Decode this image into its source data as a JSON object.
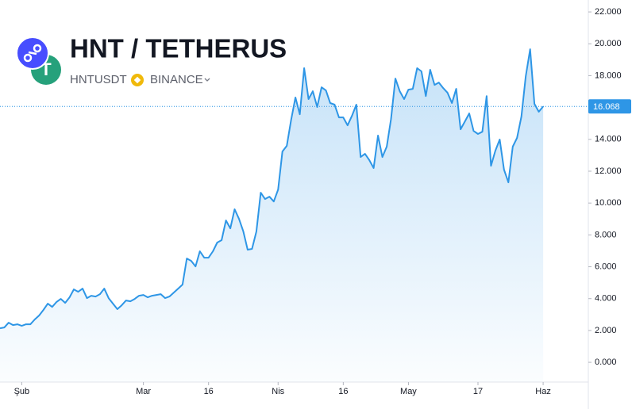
{
  "chart_data": {
    "type": "area",
    "title": "HNT / TETHERUS",
    "symbol": "HNTUSDT",
    "exchange": "BINANCE",
    "x": [
      -5,
      -4,
      -3,
      -2,
      -1,
      0,
      1,
      2,
      3,
      4,
      5,
      6,
      7,
      8,
      9,
      10,
      11,
      12,
      13,
      14,
      15,
      16,
      17,
      18,
      19,
      20,
      21,
      22,
      23,
      24,
      25,
      26,
      27,
      28,
      29,
      30,
      31,
      32,
      33,
      34,
      35,
      36,
      37,
      38,
      39,
      40,
      41,
      42,
      43,
      44,
      45,
      46,
      47,
      48,
      49,
      50,
      51,
      52,
      53,
      54,
      55,
      56,
      57,
      58,
      59,
      60,
      61,
      62,
      63,
      64,
      65,
      66,
      67,
      68,
      69,
      70,
      71,
      72,
      73,
      74,
      75,
      76,
      77,
      78,
      79,
      80,
      81,
      82,
      83,
      84,
      85,
      86,
      87,
      88,
      89,
      90,
      91,
      92,
      93,
      94,
      95,
      96,
      97,
      98,
      99,
      100,
      101,
      102,
      103,
      104,
      105,
      106,
      107,
      108,
      109,
      110,
      111,
      112,
      113,
      114,
      115,
      116,
      117,
      118,
      119,
      120
    ],
    "series": [
      {
        "name": "HNTUSDT",
        "color": "#2e96e6",
        "values": [
          2.14,
          2.19,
          2.49,
          2.34,
          2.39,
          2.29,
          2.39,
          2.39,
          2.69,
          2.94,
          3.29,
          3.68,
          3.48,
          3.78,
          3.98,
          3.73,
          4.08,
          4.58,
          4.43,
          4.63,
          4.03,
          4.18,
          4.13,
          4.28,
          4.63,
          4.03,
          3.68,
          3.34,
          3.58,
          3.88,
          3.83,
          3.98,
          4.18,
          4.23,
          4.08,
          4.18,
          4.23,
          4.28,
          4.03,
          4.13,
          4.38,
          4.63,
          4.88,
          6.52,
          6.37,
          6.02,
          6.97,
          6.57,
          6.57,
          6.97,
          7.52,
          7.67,
          8.91,
          8.41,
          9.61,
          9.01,
          8.21,
          7.07,
          7.12,
          8.21,
          10.65,
          10.25,
          10.4,
          10.1,
          10.85,
          13.24,
          13.59,
          15.23,
          16.63,
          15.58,
          18.47,
          16.53,
          17.02,
          16.03,
          17.27,
          17.07,
          16.28,
          16.18,
          15.38,
          15.38,
          14.88,
          15.48,
          16.18,
          12.89,
          13.09,
          12.69,
          12.2,
          14.24,
          12.89,
          13.54,
          15.28,
          17.82,
          17.02,
          16.53,
          17.12,
          17.17,
          18.47,
          18.27,
          16.72,
          18.37,
          17.42,
          17.57,
          17.22,
          16.92,
          16.28,
          17.17,
          14.63,
          15.13,
          15.63,
          14.53,
          14.34,
          14.48,
          16.72,
          12.34,
          13.29,
          13.99,
          12.1,
          11.3,
          13.54,
          14.09,
          15.43,
          17.97,
          19.66,
          16.23,
          15.73,
          16.068
        ]
      }
    ],
    "last_value_label": "16.068",
    "xlim": [
      -5,
      130.4
    ],
    "xticks": [
      {
        "value": 0,
        "label": "Şub"
      },
      {
        "value": 28,
        "label": "Mar"
      },
      {
        "value": 43,
        "label": "16"
      },
      {
        "value": 59,
        "label": "Nis"
      },
      {
        "value": 74,
        "label": "16"
      },
      {
        "value": 89,
        "label": "May"
      },
      {
        "value": 105,
        "label": "17"
      },
      {
        "value": 120,
        "label": "Haz"
      }
    ],
    "ylim": [
      -1.24,
      22.75
    ],
    "yticks": [
      {
        "value": 0,
        "label": "0.000"
      },
      {
        "value": 2,
        "label": "2.000"
      },
      {
        "value": 4,
        "label": "4.000"
      },
      {
        "value": 6,
        "label": "6.000"
      },
      {
        "value": 8,
        "label": "8.000"
      },
      {
        "value": 10,
        "label": "10.000"
      },
      {
        "value": 12,
        "label": "12.000"
      },
      {
        "value": 14,
        "label": "14.000"
      },
      {
        "value": 16,
        "label": "16.000"
      },
      {
        "value": 18,
        "label": "18.000"
      },
      {
        "value": 20,
        "label": "20.000"
      },
      {
        "value": 22,
        "label": "22.000"
      }
    ]
  }
}
